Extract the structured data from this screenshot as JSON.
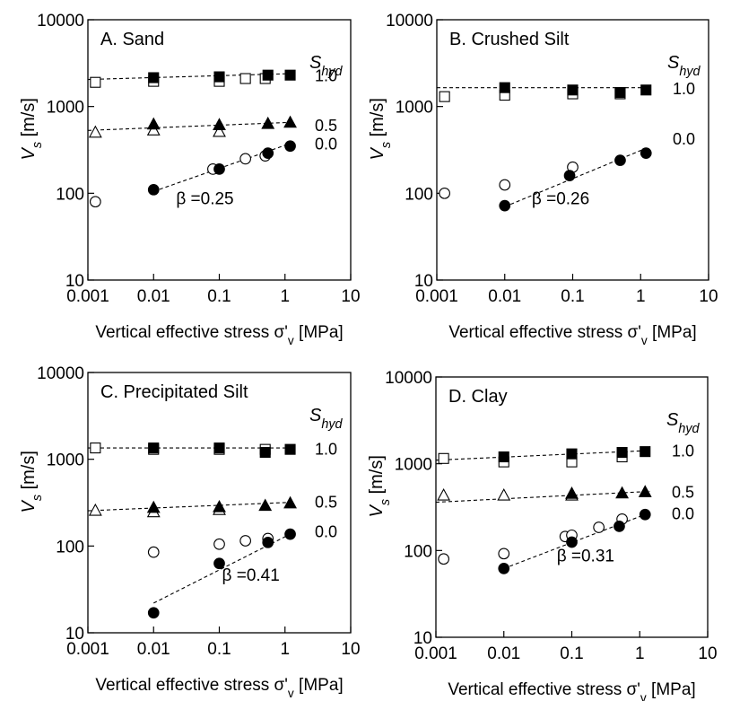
{
  "chart_data": [
    {
      "type": "scatter",
      "title": "A.  Sand",
      "xlabel": "Vertical effective stress σ'v [MPa]",
      "ylabel": "Vs [m/s]",
      "xscale": "log",
      "yscale": "log",
      "xlim": [
        0.001,
        10
      ],
      "ylim": [
        10,
        10000
      ],
      "xticks": [
        "0.001",
        "0.01",
        "0.1",
        "1",
        "10"
      ],
      "yticks": [
        "10",
        "100",
        "1000",
        "10000"
      ],
      "legend_title": "Shyd",
      "beta_label": "β =0.25",
      "beta_pos": [
        0.022,
        75
      ],
      "series": [
        {
          "name": "1.0",
          "level_y": 2250,
          "marker": "square",
          "filled": [
            [
              0.01,
              2150
            ],
            [
              0.1,
              2200
            ],
            [
              0.55,
              2300
            ],
            [
              1.2,
              2300
            ]
          ],
          "open": [
            [
              0.0013,
              1900
            ],
            [
              0.01,
              1950
            ],
            [
              0.1,
              1950
            ],
            [
              0.25,
              2100
            ],
            [
              0.5,
              2100
            ]
          ],
          "fit": [
            [
              0.001,
              2050
            ],
            [
              1.4,
              2400
            ]
          ]
        },
        {
          "name": "0.5",
          "level_y": 600,
          "marker": "triangle",
          "filled": [
            [
              0.01,
              620
            ],
            [
              0.1,
              610
            ],
            [
              0.55,
              630
            ],
            [
              1.2,
              650
            ]
          ],
          "open": [
            [
              0.0013,
              500
            ],
            [
              0.01,
              530
            ],
            [
              0.1,
              510
            ]
          ],
          "fit": [
            [
              0.001,
              530
            ],
            [
              1.4,
              660
            ]
          ]
        },
        {
          "name": "0.0",
          "level_y": 370,
          "marker": "circle",
          "filled": [
            [
              0.01,
              110
            ],
            [
              0.1,
              190
            ],
            [
              0.55,
              290
            ],
            [
              1.2,
              350
            ]
          ],
          "open": [
            [
              0.0013,
              80
            ],
            [
              0.08,
              190
            ],
            [
              0.25,
              250
            ],
            [
              0.5,
              270
            ]
          ],
          "fit": [
            [
              0.01,
              105
            ],
            [
              1.2,
              375
            ]
          ]
        }
      ]
    },
    {
      "type": "scatter",
      "title": "B. Crushed Silt",
      "xlabel": "Vertical effective stress σ'v [MPa]",
      "ylabel": "Vs [m/s]",
      "xscale": "log",
      "yscale": "log",
      "xlim": [
        0.001,
        10
      ],
      "ylim": [
        10,
        10000
      ],
      "xticks": [
        "0.001",
        "0.01",
        "0.1",
        "1",
        "10"
      ],
      "yticks": [
        "10",
        "100",
        "1000",
        "10000"
      ],
      "legend_title": "Shyd",
      "beta_label": "β =0.26",
      "beta_pos": [
        0.025,
        75
      ],
      "series": [
        {
          "name": "1.0",
          "level_y": 1600,
          "marker": "square",
          "filled": [
            [
              0.01,
              1650
            ],
            [
              0.1,
              1550
            ],
            [
              0.5,
              1450
            ],
            [
              1.2,
              1550
            ]
          ],
          "open": [
            [
              0.0013,
              1300
            ],
            [
              0.01,
              1350
            ],
            [
              0.1,
              1400
            ],
            [
              0.5,
              1400
            ]
          ],
          "fit": [
            [
              0.001,
              1650
            ],
            [
              1.4,
              1650
            ]
          ]
        },
        {
          "name": "0.0",
          "level_y": 420,
          "marker": "circle",
          "filled": [
            [
              0.01,
              72
            ],
            [
              0.09,
              160
            ],
            [
              0.5,
              240
            ],
            [
              1.2,
              290
            ]
          ],
          "open": [
            [
              0.0013,
              100
            ],
            [
              0.01,
              125
            ],
            [
              0.1,
              200
            ]
          ],
          "fit": [
            [
              0.01,
              70
            ],
            [
              1.2,
              330
            ]
          ]
        }
      ]
    },
    {
      "type": "scatter",
      "title": "C. Precipitated Silt",
      "xlabel": "Vertical effective stress σ'v [MPa]",
      "ylabel": "Vs [m/s]",
      "xscale": "log",
      "yscale": "log",
      "xlim": [
        0.001,
        10
      ],
      "ylim": [
        10,
        10000
      ],
      "xticks": [
        "0.001",
        "0.01",
        "0.1",
        "1",
        "10"
      ],
      "yticks": [
        "10",
        "100",
        "1000",
        "10000"
      ],
      "legend_title": "Shyd",
      "beta_label": "β =0.41",
      "beta_pos": [
        0.11,
        40
      ],
      "series": [
        {
          "name": "1.0",
          "level_y": 1300,
          "marker": "square",
          "filled": [
            [
              0.01,
              1350
            ],
            [
              0.1,
              1350
            ],
            [
              0.5,
              1200
            ],
            [
              1.2,
              1300
            ]
          ],
          "open": [
            [
              0.0013,
              1350
            ],
            [
              0.01,
              1300
            ],
            [
              0.1,
              1300
            ],
            [
              0.5,
              1300
            ]
          ],
          "fit": [
            [
              0.001,
              1350
            ],
            [
              1.4,
              1350
            ]
          ]
        },
        {
          "name": "0.5",
          "level_y": 320,
          "marker": "triangle",
          "filled": [
            [
              0.01,
              275
            ],
            [
              0.1,
              280
            ],
            [
              0.5,
              290
            ],
            [
              1.2,
              310
            ]
          ],
          "open": [
            [
              0.0013,
              255
            ],
            [
              0.01,
              245
            ],
            [
              0.1,
              260
            ]
          ],
          "fit": [
            [
              0.001,
              255
            ],
            [
              1.4,
              320
            ]
          ]
        },
        {
          "name": "0.0",
          "level_y": 145,
          "marker": "circle",
          "filled": [
            [
              0.01,
              17
            ],
            [
              0.1,
              63
            ],
            [
              0.55,
              110
            ],
            [
              1.2,
              137
            ]
          ],
          "open": [
            [
              0.01,
              85
            ],
            [
              0.1,
              105
            ],
            [
              0.25,
              115
            ],
            [
              0.55,
              122
            ]
          ],
          "fit": [
            [
              0.01,
              22
            ],
            [
              1.2,
              137
            ]
          ]
        }
      ]
    },
    {
      "type": "scatter",
      "title": "D. Clay",
      "xlabel": "Vertical effective stress σ'v [MPa]",
      "ylabel": "Vs [m/s]",
      "xscale": "log",
      "yscale": "log",
      "xlim": [
        0.001,
        10
      ],
      "ylim": [
        10,
        10000
      ],
      "xticks": [
        "0.001",
        "0.01",
        "0.1",
        "1",
        "10"
      ],
      "yticks": [
        "10",
        "100",
        "1000",
        "10000"
      ],
      "legend_title": "Shyd",
      "beta_label": "β =0.31",
      "beta_pos": [
        0.06,
        75
      ],
      "series": [
        {
          "name": "1.0",
          "level_y": 1400,
          "marker": "square",
          "filled": [
            [
              0.01,
              1200
            ],
            [
              0.1,
              1300
            ],
            [
              0.55,
              1350
            ],
            [
              1.2,
              1380
            ]
          ],
          "open": [
            [
              0.0013,
              1150
            ],
            [
              0.01,
              1050
            ],
            [
              0.1,
              1050
            ],
            [
              0.55,
              1200
            ]
          ],
          "fit": [
            [
              0.001,
              1100
            ],
            [
              1.4,
              1420
            ]
          ]
        },
        {
          "name": "0.5",
          "level_y": 470,
          "marker": "triangle",
          "filled": [
            [
              0.1,
              450
            ],
            [
              0.55,
              455
            ],
            [
              1.2,
              470
            ]
          ],
          "open": [
            [
              0.0013,
              430
            ],
            [
              0.01,
              430
            ],
            [
              0.1,
              430
            ]
          ],
          "fit": [
            [
              0.001,
              360
            ],
            [
              1.4,
              480
            ]
          ]
        },
        {
          "name": "0.0",
          "level_y": 265,
          "marker": "circle",
          "filled": [
            [
              0.01,
              62
            ],
            [
              0.1,
              125
            ],
            [
              0.5,
              190
            ],
            [
              1.2,
              260
            ]
          ],
          "open": [
            [
              0.0013,
              80
            ],
            [
              0.01,
              92
            ],
            [
              0.08,
              145
            ],
            [
              0.1,
              150
            ],
            [
              0.25,
              185
            ],
            [
              0.55,
              230
            ]
          ],
          "fit": [
            [
              0.01,
              62
            ],
            [
              1.2,
              260
            ]
          ]
        }
      ]
    }
  ]
}
